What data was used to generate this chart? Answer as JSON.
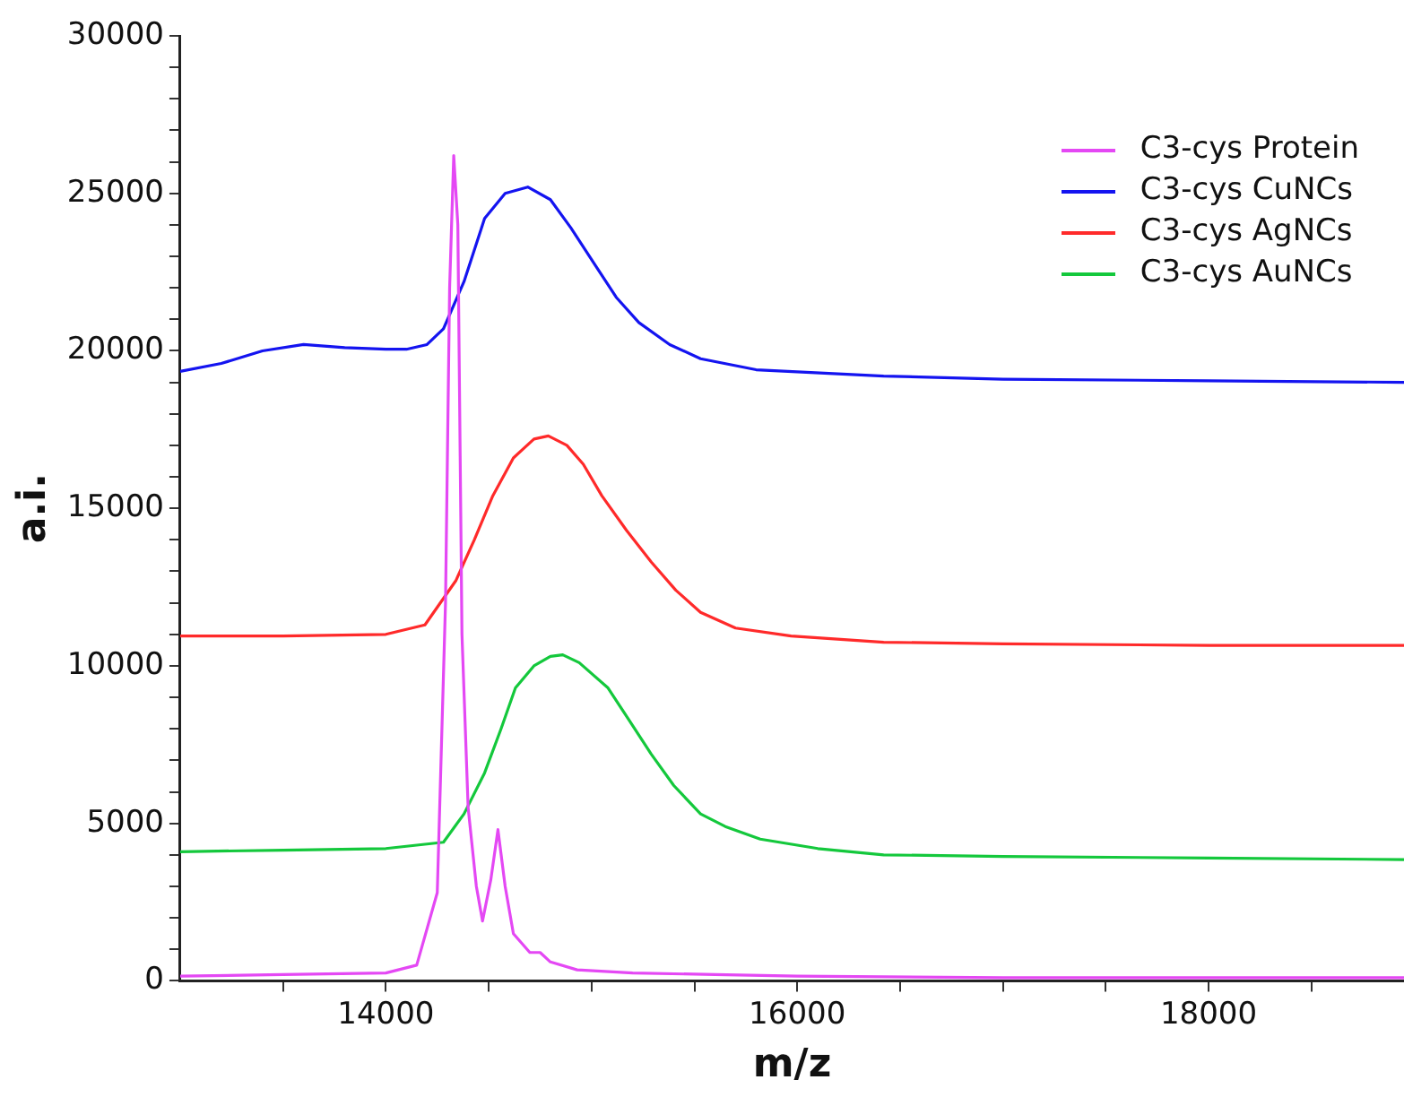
{
  "chart_data": {
    "type": "line",
    "xlabel": "m/z",
    "ylabel": "a.i.",
    "xlim": [
      13000,
      18950
    ],
    "ylim": [
      0,
      30000
    ],
    "xticks": [
      {
        "value": 13500,
        "label": null
      },
      14000,
      {
        "value": 14500,
        "label": null
      },
      {
        "value": 15000,
        "label": null
      },
      {
        "value": 15500,
        "label": null
      },
      16000,
      {
        "value": 16500,
        "label": null
      },
      {
        "value": 17000,
        "label": null
      },
      {
        "value": 17500,
        "label": null
      },
      18000,
      {
        "value": 18500,
        "label": null
      }
    ],
    "yticks": [
      0,
      {
        "value": 1000,
        "label": null
      },
      {
        "value": 2000,
        "label": null
      },
      {
        "value": 3000,
        "label": null
      },
      {
        "value": 4000,
        "label": null
      },
      5000,
      {
        "value": 6000,
        "label": null
      },
      {
        "value": 7000,
        "label": null
      },
      {
        "value": 8000,
        "label": null
      },
      {
        "value": 9000,
        "label": null
      },
      10000,
      {
        "value": 11000,
        "label": null
      },
      {
        "value": 12000,
        "label": null
      },
      {
        "value": 13000,
        "label": null
      },
      {
        "value": 14000,
        "label": null
      },
      15000,
      {
        "value": 16000,
        "label": null
      },
      {
        "value": 17000,
        "label": null
      },
      {
        "value": 18000,
        "label": null
      },
      {
        "value": 19000,
        "label": null
      },
      20000,
      {
        "value": 21000,
        "label": null
      },
      {
        "value": 22000,
        "label": null
      },
      {
        "value": 23000,
        "label": null
      },
      {
        "value": 24000,
        "label": null
      },
      25000,
      {
        "value": 26000,
        "label": null
      },
      {
        "value": 27000,
        "label": null
      },
      {
        "value": 28000,
        "label": null
      },
      {
        "value": 29000,
        "label": null
      },
      30000
    ],
    "grid": false,
    "legend": "top right",
    "marker": "none",
    "line_style": "solid",
    "series": [
      {
        "name": "C3-cys Protein",
        "color": "#e448f4",
        "x": [
          13000,
          13500,
          14000,
          14150,
          14250,
          14290,
          14310,
          14330,
          14350,
          14370,
          14400,
          14440,
          14470,
          14510,
          14545,
          14580,
          14620,
          14700,
          14750,
          14800,
          14930,
          15200,
          15600,
          16000,
          17000,
          18000,
          18950
        ],
        "values": [
          150,
          200,
          250,
          500,
          2800,
          12000,
          22000,
          26200,
          24000,
          11000,
          5500,
          3000,
          1900,
          3200,
          4800,
          3000,
          1500,
          900,
          900,
          600,
          350,
          250,
          200,
          150,
          100,
          100,
          100
        ]
      },
      {
        "name": "C3-cys CuNCs",
        "color": "#1414f0",
        "x": [
          13000,
          13200,
          13400,
          13600,
          13800,
          14000,
          14100,
          14200,
          14280,
          14380,
          14480,
          14580,
          14690,
          14800,
          14900,
          15020,
          15120,
          15230,
          15380,
          15530,
          15800,
          16420,
          17000,
          18000,
          18950
        ],
        "values": [
          19350,
          19600,
          20000,
          20200,
          20100,
          20050,
          20050,
          20200,
          20700,
          22200,
          24200,
          25000,
          25200,
          24800,
          23900,
          22700,
          21700,
          20900,
          20200,
          19750,
          19400,
          19200,
          19100,
          19050,
          19000
        ]
      },
      {
        "name": "C3-cys AgNCs",
        "color": "#ff2a2a",
        "x": [
          13000,
          13500,
          14000,
          14190,
          14340,
          14430,
          14520,
          14620,
          14720,
          14790,
          14880,
          14960,
          15050,
          15170,
          15290,
          15410,
          15530,
          15700,
          15970,
          16420,
          17000,
          18000,
          18950
        ],
        "values": [
          10950,
          10950,
          11000,
          11300,
          12700,
          14000,
          15400,
          16600,
          17200,
          17300,
          17000,
          16400,
          15400,
          14300,
          13300,
          12400,
          11700,
          11200,
          10950,
          10750,
          10700,
          10650,
          10650
        ]
      },
      {
        "name": "C3-cys AuNCs",
        "color": "#14c83c",
        "x": [
          13000,
          13500,
          14000,
          14280,
          14380,
          14480,
          14560,
          14630,
          14720,
          14800,
          14860,
          14940,
          15080,
          15180,
          15290,
          15400,
          15530,
          15650,
          15820,
          16100,
          16420,
          17000,
          18000,
          18950
        ],
        "values": [
          4100,
          4150,
          4200,
          4400,
          5300,
          6600,
          8000,
          9300,
          10000,
          10300,
          10350,
          10100,
          9300,
          8300,
          7200,
          6200,
          5300,
          4900,
          4500,
          4200,
          4000,
          3950,
          3900,
          3850
        ]
      }
    ]
  }
}
